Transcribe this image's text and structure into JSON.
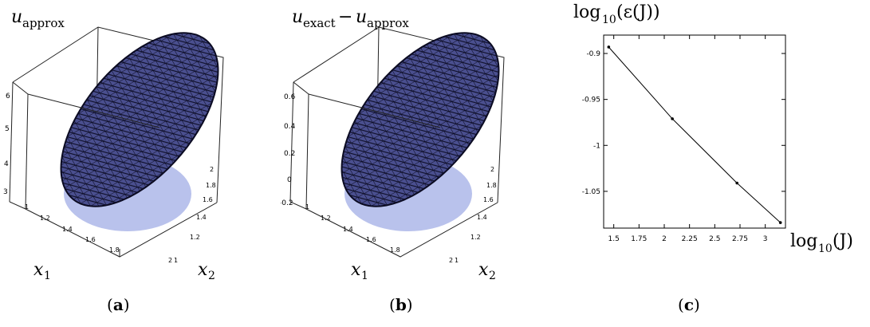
{
  "figure": {
    "panels": [
      {
        "id": "a",
        "label": "(",
        "letter": "a",
        "label_close": ")"
      },
      {
        "id": "b",
        "label": "(",
        "letter": "b",
        "label_close": ")"
      },
      {
        "id": "c",
        "label": "(",
        "letter": "c",
        "label_close": ")"
      }
    ]
  },
  "chart_data": [
    {
      "type": "surface3d",
      "panel": "a",
      "title": {
        "base": "u",
        "sub": "approx"
      },
      "xlabel": {
        "base": "x",
        "sub": "1"
      },
      "ylabel": {
        "base": "x",
        "sub": "2"
      },
      "x_ticks": [
        "1",
        "1.2",
        "1.4",
        "1.6",
        "1.8",
        "2"
      ],
      "y_ticks": [
        "1",
        "1.2",
        "1.4",
        "1.6",
        "1.8",
        "2"
      ],
      "z_ticks": [
        "3",
        "4",
        "5",
        "6"
      ],
      "colors": {
        "surface": "#4a4f8f",
        "mesh": "#0b0b22",
        "shadow": "#b9c2ec",
        "box": "#222222"
      }
    },
    {
      "type": "surface3d",
      "panel": "b",
      "title": {
        "base": "u",
        "sub": "exact",
        "minus": "−",
        "base2": "u",
        "sub2": "approx"
      },
      "xlabel": {
        "base": "x",
        "sub": "1"
      },
      "ylabel": {
        "base": "x",
        "sub": "2"
      },
      "x_ticks": [
        "1",
        "1.2",
        "1.4",
        "1.6",
        "1.8",
        "2"
      ],
      "y_ticks": [
        "1",
        "1.2",
        "1.4",
        "1.6",
        "1.8",
        "2"
      ],
      "z_ticks": [
        "-0.2",
        "0",
        "0.2",
        "0.4",
        "0.6"
      ],
      "colors": {
        "surface": "#4a4f8f",
        "mesh": "#0b0b22",
        "shadow": "#b9c2ec",
        "box": "#222222"
      }
    },
    {
      "type": "line",
      "panel": "c",
      "title": {
        "pre": "log",
        "sub": "10",
        "post": "(ε(J))"
      },
      "xlabel": {
        "pre": "log",
        "sub": "10",
        "post": "(J)"
      },
      "xlim": [
        1.4,
        3.2
      ],
      "ylim": [
        -1.09,
        -0.88
      ],
      "x_ticks": [
        1.5,
        1.75,
        2,
        2.25,
        2.5,
        2.75,
        3
      ],
      "x_tick_labels": [
        "1.5",
        "1.75",
        "2",
        "2.25",
        "2.5",
        "2.75",
        "3"
      ],
      "y_ticks": [
        -0.9,
        -0.95,
        -1,
        -1.05
      ],
      "y_tick_labels": [
        "-0.9",
        "-0.95",
        "-1",
        "-1.05"
      ],
      "x": [
        1.45,
        2.08,
        2.72,
        3.15
      ],
      "y": [
        -0.893,
        -0.971,
        -1.041,
        -1.084
      ],
      "colors": {
        "line": "#000000"
      }
    }
  ]
}
